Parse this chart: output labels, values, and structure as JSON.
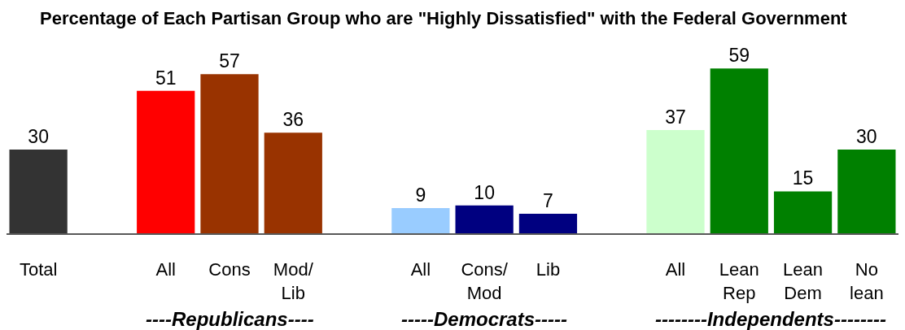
{
  "chart_data": {
    "type": "bar",
    "title": "Percentage of Each Partisan Group who are \"Highly Dissatisfied\" with the Federal Government",
    "categories": [
      "Total",
      null,
      "All",
      "Cons",
      "Mod/\nLib",
      null,
      "All",
      "Cons/\nMod",
      "Lib",
      null,
      "All",
      "Lean\nRep",
      "Lean\nDem",
      "No\nlean"
    ],
    "values": [
      30,
      null,
      51,
      57,
      36,
      null,
      9,
      10,
      7,
      null,
      37,
      59,
      15,
      30
    ],
    "colors": [
      "#333333",
      null,
      "#ff0000",
      "#993300",
      "#993300",
      null,
      "#99ccff",
      "#000080",
      "#000080",
      null,
      "#ccffcc",
      "#008000",
      "#008000",
      "#008000"
    ],
    "data_labels": true,
    "annotations": [
      "----Republicans----",
      "-----Democrats-----",
      "--------Independents--------"
    ]
  }
}
